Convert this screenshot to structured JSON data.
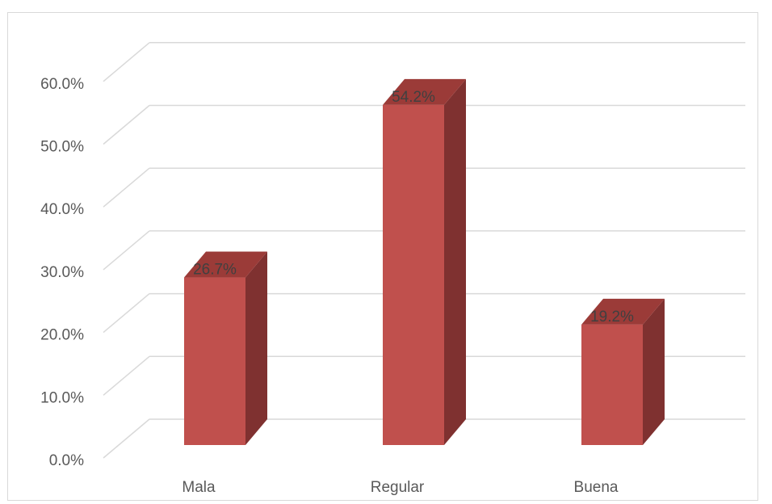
{
  "chart_data": {
    "type": "bar",
    "style": "3d-column",
    "title": "",
    "xlabel": "",
    "ylabel": "",
    "categories": [
      "Mala",
      "Regular",
      "Buena"
    ],
    "values": [
      26.7,
      54.2,
      19.2
    ],
    "data_labels": [
      "26.7%",
      "54.2%",
      "19.2%"
    ],
    "ylim": [
      0,
      60
    ],
    "yticks": [
      0,
      10,
      20,
      30,
      40,
      50,
      60
    ],
    "ytick_labels": [
      "0.0%",
      "10.0%",
      "20.0%",
      "30.0%",
      "40.0%",
      "50.0%",
      "60.0%"
    ],
    "grid": true,
    "legend": "none",
    "colors": {
      "bar_front": "#c0504d",
      "bar_side": "#7f3130",
      "bar_top": "#9b3b38",
      "grid": "#d9d9d9",
      "text": "#595959"
    }
  }
}
